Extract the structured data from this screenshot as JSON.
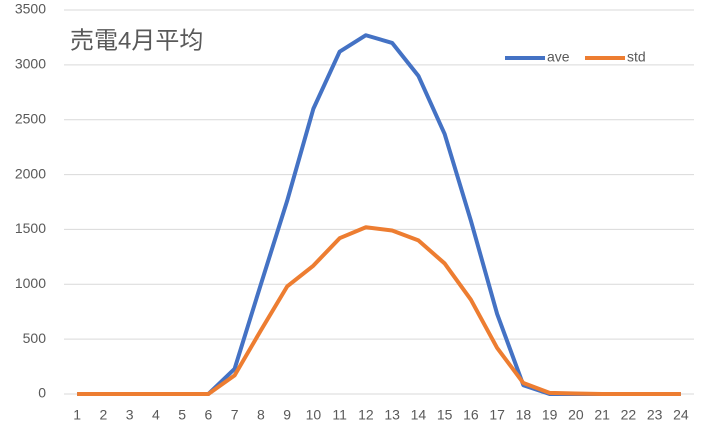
{
  "chart_data": {
    "type": "line",
    "title": "売電4月平均",
    "categories": [
      "1",
      "2",
      "3",
      "4",
      "5",
      "6",
      "7",
      "8",
      "9",
      "10",
      "11",
      "12",
      "13",
      "14",
      "15",
      "16",
      "17",
      "18",
      "19",
      "20",
      "21",
      "22",
      "23",
      "24"
    ],
    "series": [
      {
        "name": "ave",
        "color": "#4472c4",
        "values": [
          0,
          0,
          0,
          0,
          0,
          0,
          230,
          1000,
          1760,
          2600,
          3120,
          3270,
          3200,
          2900,
          2370,
          1580,
          730,
          80,
          0,
          0,
          0,
          0,
          0,
          0
        ]
      },
      {
        "name": "std",
        "color": "#ed7d31",
        "values": [
          0,
          0,
          0,
          0,
          0,
          0,
          170,
          580,
          980,
          1170,
          1420,
          1520,
          1490,
          1400,
          1190,
          860,
          420,
          100,
          10,
          5,
          0,
          0,
          0,
          0
        ]
      }
    ],
    "ylim": [
      0,
      3500
    ],
    "yticks": [
      0,
      500,
      1000,
      1500,
      2000,
      2500,
      3000,
      3500
    ],
    "grid": true
  }
}
